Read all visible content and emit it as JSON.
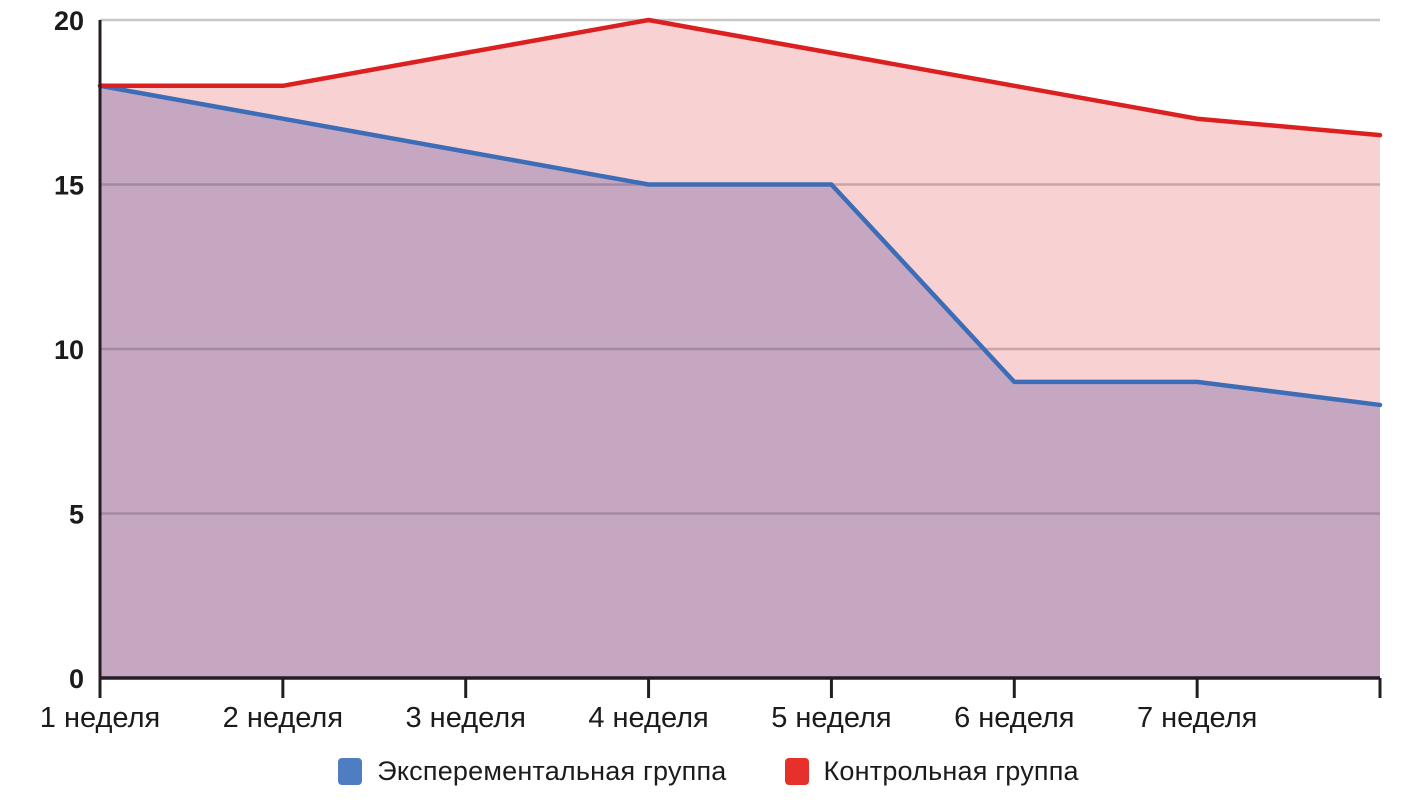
{
  "chart_data": {
    "type": "area",
    "categories": [
      "1 неделя",
      "2 неделя",
      "3 неделя",
      "4 неделя",
      "5 неделя",
      "6 неделя",
      "7 неделя",
      ""
    ],
    "series": [
      {
        "name": "Эксперементальная группа",
        "values": [
          18,
          17,
          16,
          15,
          15,
          9,
          9,
          8.3
        ],
        "line_color": "#3d6db7",
        "fill_color": "rgba(80,70,160,0.30)",
        "swatch_color": "#4e7dc2"
      },
      {
        "name": "Контрольная группа",
        "values": [
          18,
          18,
          19,
          20,
          19,
          18,
          17,
          16.5
        ],
        "line_color": "#dc1f1f",
        "fill_color": "rgba(220,30,30,0.20)",
        "swatch_color": "#e6302b"
      }
    ],
    "ylim": [
      0,
      20
    ],
    "yticks": [
      0,
      5,
      10,
      15,
      20
    ],
    "grid": true,
    "legend_position": "bottom"
  },
  "style": {
    "grid_color": "#c7c7c7",
    "axis_color": "#241d26",
    "tick_label_color": "#1b1b1b"
  }
}
